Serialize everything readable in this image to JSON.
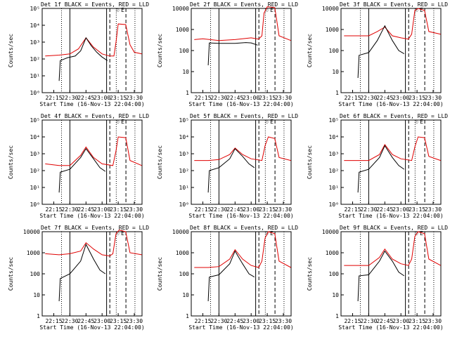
{
  "chart_data": {
    "type": "line",
    "layout": "3x3 grid of log-scale time-series panels",
    "y_scale": "log",
    "ylabel": "Counts/sec",
    "xlabel": "Start Time (16-Nov-13 22:04:00)",
    "x_ticks": [
      "22:15",
      "22:30",
      "22:45",
      "23:00",
      "23:15",
      "23:30"
    ],
    "series_colors": {
      "events": "#000000",
      "lld": "#e00000"
    },
    "markers": {
      "sun_symbol": "☉",
      "E": "E"
    },
    "panels": [
      {
        "title": "Det 1f BLACK = Events, RED = LLD",
        "ylim": [
          1,
          100000
        ],
        "y_ticks": [
          "10⁰",
          "10¹",
          "10²",
          "10³",
          "10⁴",
          "10⁵"
        ],
        "events": [
          [
            22.2,
            5
          ],
          [
            22.21,
            80
          ],
          [
            22.28,
            120
          ],
          [
            22.35,
            150
          ],
          [
            22.4,
            300
          ],
          [
            22.45,
            1800
          ],
          [
            22.5,
            600
          ],
          [
            22.55,
            250
          ],
          [
            23.0,
            130
          ],
          [
            23.05,
            80
          ]
        ],
        "lld": [
          [
            22.07,
            150
          ],
          [
            22.2,
            170
          ],
          [
            22.3,
            200
          ],
          [
            22.38,
            400
          ],
          [
            22.45,
            1800
          ],
          [
            22.52,
            500
          ],
          [
            23.0,
            200
          ],
          [
            23.07,
            150
          ],
          [
            23.11,
            150
          ],
          [
            23.13,
            1000
          ],
          [
            23.15,
            12000
          ],
          [
            23.22,
            11000
          ],
          [
            23.26,
            700
          ],
          [
            23.3,
            250
          ],
          [
            23.37,
            200
          ]
        ]
      },
      {
        "title": "Det 2f BLACK = Events, RED = LLD",
        "ylim": [
          1,
          10000
        ],
        "y_ticks": [
          "1",
          "10",
          "100",
          "1000",
          "10000"
        ],
        "events": [
          [
            22.2,
            20
          ],
          [
            22.21,
            230
          ],
          [
            22.3,
            220
          ],
          [
            22.45,
            220
          ],
          [
            22.55,
            240
          ],
          [
            23.0,
            230
          ],
          [
            23.06,
            180
          ]
        ],
        "lld": [
          [
            22.07,
            330
          ],
          [
            22.15,
            360
          ],
          [
            22.3,
            300
          ],
          [
            22.45,
            330
          ],
          [
            23.0,
            400
          ],
          [
            23.07,
            350
          ],
          [
            23.1,
            500
          ],
          [
            23.12,
            6000
          ],
          [
            23.15,
            12000
          ],
          [
            23.22,
            11000
          ],
          [
            23.26,
            500
          ],
          [
            23.37,
            300
          ]
        ]
      },
      {
        "title": "Det 3f BLACK = Events, RED = LLD",
        "ylim": [
          1,
          10000
        ],
        "y_ticks": [
          "1",
          "10",
          "100",
          "1000",
          "10000"
        ],
        "events": [
          [
            22.2,
            5
          ],
          [
            22.21,
            60
          ],
          [
            22.3,
            80
          ],
          [
            22.38,
            300
          ],
          [
            22.45,
            1500
          ],
          [
            22.52,
            300
          ],
          [
            22.58,
            100
          ],
          [
            23.03,
            70
          ]
        ],
        "lld": [
          [
            22.07,
            500
          ],
          [
            22.2,
            500
          ],
          [
            22.3,
            500
          ],
          [
            22.38,
            800
          ],
          [
            22.45,
            1300
          ],
          [
            22.52,
            500
          ],
          [
            23.0,
            400
          ],
          [
            23.07,
            350
          ],
          [
            23.1,
            600
          ],
          [
            23.13,
            8000
          ],
          [
            23.16,
            10000
          ],
          [
            23.22,
            8000
          ],
          [
            23.26,
            800
          ],
          [
            23.37,
            600
          ]
        ]
      },
      {
        "title": "Det 4f BLACK = Events, RED = LLD",
        "ylim": [
          1,
          100000
        ],
        "y_ticks": [
          "10⁰",
          "10¹",
          "10²",
          "10³",
          "10⁴",
          "10⁵"
        ],
        "events": [
          [
            22.2,
            5
          ],
          [
            22.21,
            80
          ],
          [
            22.3,
            120
          ],
          [
            22.4,
            600
          ],
          [
            22.45,
            2000
          ],
          [
            22.52,
            500
          ],
          [
            22.58,
            150
          ],
          [
            23.03,
            90
          ]
        ],
        "lld": [
          [
            22.07,
            250
          ],
          [
            22.2,
            200
          ],
          [
            22.3,
            200
          ],
          [
            22.4,
            800
          ],
          [
            22.45,
            2500
          ],
          [
            22.52,
            600
          ],
          [
            23.0,
            250
          ],
          [
            23.1,
            200
          ],
          [
            23.13,
            1500
          ],
          [
            23.15,
            10000
          ],
          [
            23.22,
            9000
          ],
          [
            23.26,
            400
          ],
          [
            23.37,
            200
          ]
        ]
      },
      {
        "title": "Det 5f BLACK = Events, RED = LLD",
        "ylim": [
          1,
          100000
        ],
        "y_ticks": [
          "10⁰",
          "10¹",
          "10²",
          "10³",
          "10⁴",
          "10⁵"
        ],
        "events": [
          [
            22.2,
            5
          ],
          [
            22.21,
            100
          ],
          [
            22.3,
            150
          ],
          [
            22.4,
            500
          ],
          [
            22.45,
            2000
          ],
          [
            22.52,
            700
          ],
          [
            22.58,
            250
          ],
          [
            23.03,
            150
          ]
        ],
        "lld": [
          [
            22.07,
            400
          ],
          [
            22.2,
            400
          ],
          [
            22.3,
            450
          ],
          [
            22.4,
            900
          ],
          [
            22.45,
            2200
          ],
          [
            22.52,
            900
          ],
          [
            23.0,
            500
          ],
          [
            23.1,
            400
          ],
          [
            23.13,
            3000
          ],
          [
            23.16,
            10000
          ],
          [
            23.22,
            8000
          ],
          [
            23.26,
            600
          ],
          [
            23.37,
            400
          ]
        ]
      },
      {
        "title": "Det 6f BLACK = Events, RED = LLD",
        "ylim": [
          1,
          100000
        ],
        "y_ticks": [
          "10⁰",
          "10¹",
          "10²",
          "10³",
          "10⁴",
          "10⁵"
        ],
        "events": [
          [
            22.2,
            5
          ],
          [
            22.21,
            80
          ],
          [
            22.3,
            120
          ],
          [
            22.4,
            600
          ],
          [
            22.45,
            3000
          ],
          [
            22.52,
            600
          ],
          [
            22.58,
            200
          ],
          [
            23.03,
            120
          ]
        ],
        "lld": [
          [
            22.07,
            400
          ],
          [
            22.2,
            400
          ],
          [
            22.3,
            400
          ],
          [
            22.4,
            900
          ],
          [
            22.45,
            3500
          ],
          [
            22.52,
            900
          ],
          [
            23.0,
            500
          ],
          [
            23.1,
            400
          ],
          [
            23.13,
            2500
          ],
          [
            23.16,
            10000
          ],
          [
            23.22,
            9000
          ],
          [
            23.26,
            700
          ],
          [
            23.37,
            400
          ]
        ]
      },
      {
        "title": "Det 7f BLACK = Events, RED = LLD",
        "ylim": [
          1,
          10000
        ],
        "y_ticks": [
          "1",
          "10",
          "100",
          "1000",
          "10000"
        ],
        "events": [
          [
            22.2,
            5
          ],
          [
            22.21,
            60
          ],
          [
            22.3,
            100
          ],
          [
            22.4,
            400
          ],
          [
            22.45,
            2500
          ],
          [
            22.52,
            500
          ],
          [
            22.58,
            150
          ],
          [
            23.03,
            100
          ]
        ],
        "lld": [
          [
            22.07,
            900
          ],
          [
            22.2,
            800
          ],
          [
            22.3,
            900
          ],
          [
            22.4,
            1200
          ],
          [
            22.45,
            3000
          ],
          [
            22.52,
            1500
          ],
          [
            23.0,
            800
          ],
          [
            23.07,
            700
          ],
          [
            23.1,
            900
          ],
          [
            23.13,
            8000
          ],
          [
            23.16,
            12000
          ],
          [
            23.22,
            10000
          ],
          [
            23.26,
            1000
          ],
          [
            23.37,
            800
          ]
        ]
      },
      {
        "title": "Det 8f BLACK = Events, RED = LLD",
        "ylim": [
          1,
          10000
        ],
        "y_ticks": [
          "1",
          "10",
          "100",
          "1000",
          "10000"
        ],
        "events": [
          [
            22.2,
            5
          ],
          [
            22.21,
            70
          ],
          [
            22.3,
            90
          ],
          [
            22.4,
            300
          ],
          [
            22.45,
            1200
          ],
          [
            22.52,
            300
          ],
          [
            22.58,
            100
          ],
          [
            23.03,
            70
          ]
        ],
        "lld": [
          [
            22.07,
            200
          ],
          [
            22.2,
            200
          ],
          [
            22.3,
            220
          ],
          [
            22.4,
            500
          ],
          [
            22.45,
            1400
          ],
          [
            22.52,
            500
          ],
          [
            23.0,
            250
          ],
          [
            23.07,
            200
          ],
          [
            23.1,
            400
          ],
          [
            23.13,
            5000
          ],
          [
            23.16,
            10000
          ],
          [
            23.22,
            8000
          ],
          [
            23.26,
            400
          ],
          [
            23.37,
            200
          ]
        ]
      },
      {
        "title": "Det 9f BLACK = Events, RED = LLD",
        "ylim": [
          1,
          10000
        ],
        "y_ticks": [
          "1",
          "10",
          "100",
          "1000",
          "10000"
        ],
        "events": [
          [
            22.2,
            5
          ],
          [
            22.21,
            80
          ],
          [
            22.3,
            90
          ],
          [
            22.4,
            400
          ],
          [
            22.45,
            1200
          ],
          [
            22.52,
            400
          ],
          [
            22.58,
            120
          ],
          [
            23.03,
            80
          ]
        ],
        "lld": [
          [
            22.07,
            250
          ],
          [
            22.2,
            250
          ],
          [
            22.3,
            250
          ],
          [
            22.4,
            600
          ],
          [
            22.45,
            1500
          ],
          [
            22.52,
            500
          ],
          [
            23.0,
            300
          ],
          [
            23.07,
            250
          ],
          [
            23.1,
            500
          ],
          [
            23.13,
            6000
          ],
          [
            23.16,
            10000
          ],
          [
            23.22,
            8000
          ],
          [
            23.26,
            500
          ],
          [
            23.37,
            250
          ]
        ]
      }
    ]
  }
}
